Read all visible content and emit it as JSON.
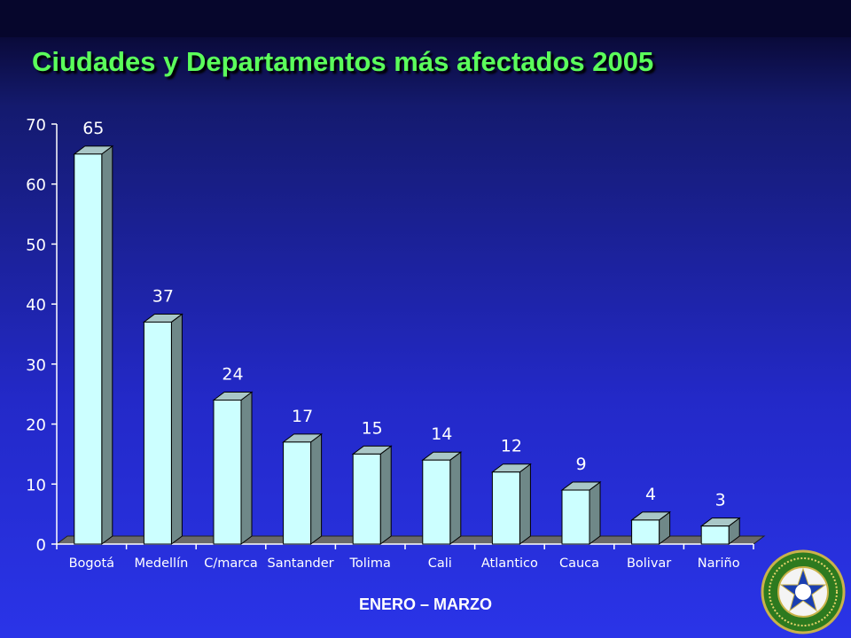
{
  "title": "Ciudades y Departamentos más afectados 2005",
  "footer": "ENERO – MARZO",
  "seal": {
    "lettering": [
      "POLICIA NACIONAL",
      "DIJIN"
    ]
  },
  "colors": {
    "title": "#5bff5b",
    "bar_front": "#ccffff",
    "bar_side": "#6f8888",
    "bar_top": "#a9c7c7",
    "axis_text": "#ffffff"
  },
  "chart_data": {
    "type": "bar",
    "categories": [
      "Bogotá",
      "Medellín",
      "C/marca",
      "Santander",
      "Tolima",
      "Cali",
      "Atlantico",
      "Cauca",
      "Bolivar",
      "Nariño"
    ],
    "values": [
      65,
      37,
      24,
      17,
      15,
      14,
      12,
      9,
      4,
      3
    ],
    "ylim": [
      0,
      70
    ],
    "yticks": [
      0,
      10,
      20,
      30,
      40,
      50,
      60,
      70
    ],
    "data_labels": true,
    "grid": false,
    "legend": "none",
    "title": "",
    "xlabel": "",
    "ylabel": ""
  }
}
